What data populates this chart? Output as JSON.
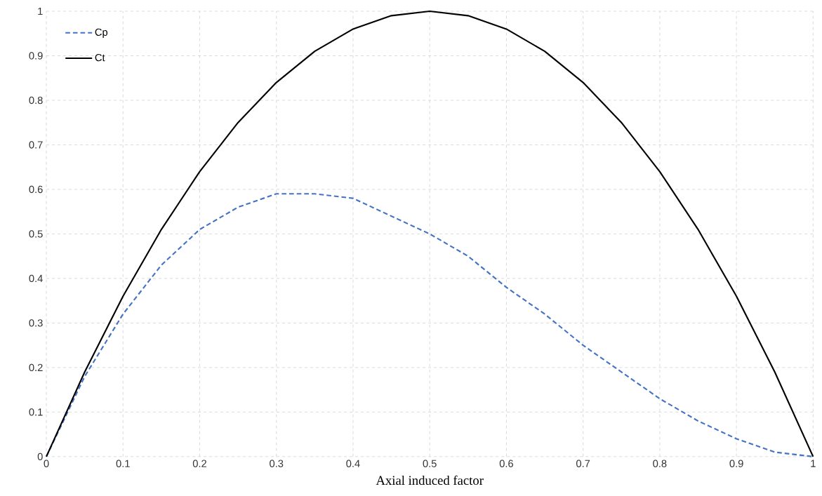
{
  "chart_data": {
    "type": "line",
    "xlabel": "Axial induced factor",
    "x": [
      0,
      0.05,
      0.1,
      0.15,
      0.2,
      0.25,
      0.3,
      0.35,
      0.4,
      0.45,
      0.5,
      0.55,
      0.6,
      0.65,
      0.7,
      0.75,
      0.8,
      0.85,
      0.9,
      0.95,
      1
    ],
    "series": [
      {
        "name": "Cp",
        "color": "#4472c4",
        "line_style": "dashed",
        "values": [
          0,
          0.18,
          0.32,
          0.43,
          0.51,
          0.56,
          0.59,
          0.59,
          0.58,
          0.54,
          0.5,
          0.45,
          0.38,
          0.32,
          0.25,
          0.19,
          0.13,
          0.08,
          0.04,
          0.01,
          0
        ]
      },
      {
        "name": "Ct",
        "color": "#000000",
        "line_style": "solid",
        "values": [
          0,
          0.19,
          0.36,
          0.51,
          0.64,
          0.75,
          0.84,
          0.91,
          0.96,
          0.99,
          1,
          0.99,
          0.96,
          0.91,
          0.84,
          0.75,
          0.64,
          0.51,
          0.36,
          0.19,
          0
        ]
      }
    ],
    "xlim": [
      0,
      1
    ],
    "xticks": [
      0,
      0.1,
      0.2,
      0.3,
      0.4,
      0.5,
      0.6,
      0.7,
      0.8,
      0.9,
      1
    ],
    "ylim": [
      0,
      1
    ],
    "yticks": [
      0,
      0.1,
      0.2,
      0.3,
      0.4,
      0.5,
      0.6,
      0.7,
      0.8,
      0.9,
      1
    ],
    "grid": true,
    "legend": "top left",
    "marker": "none"
  }
}
